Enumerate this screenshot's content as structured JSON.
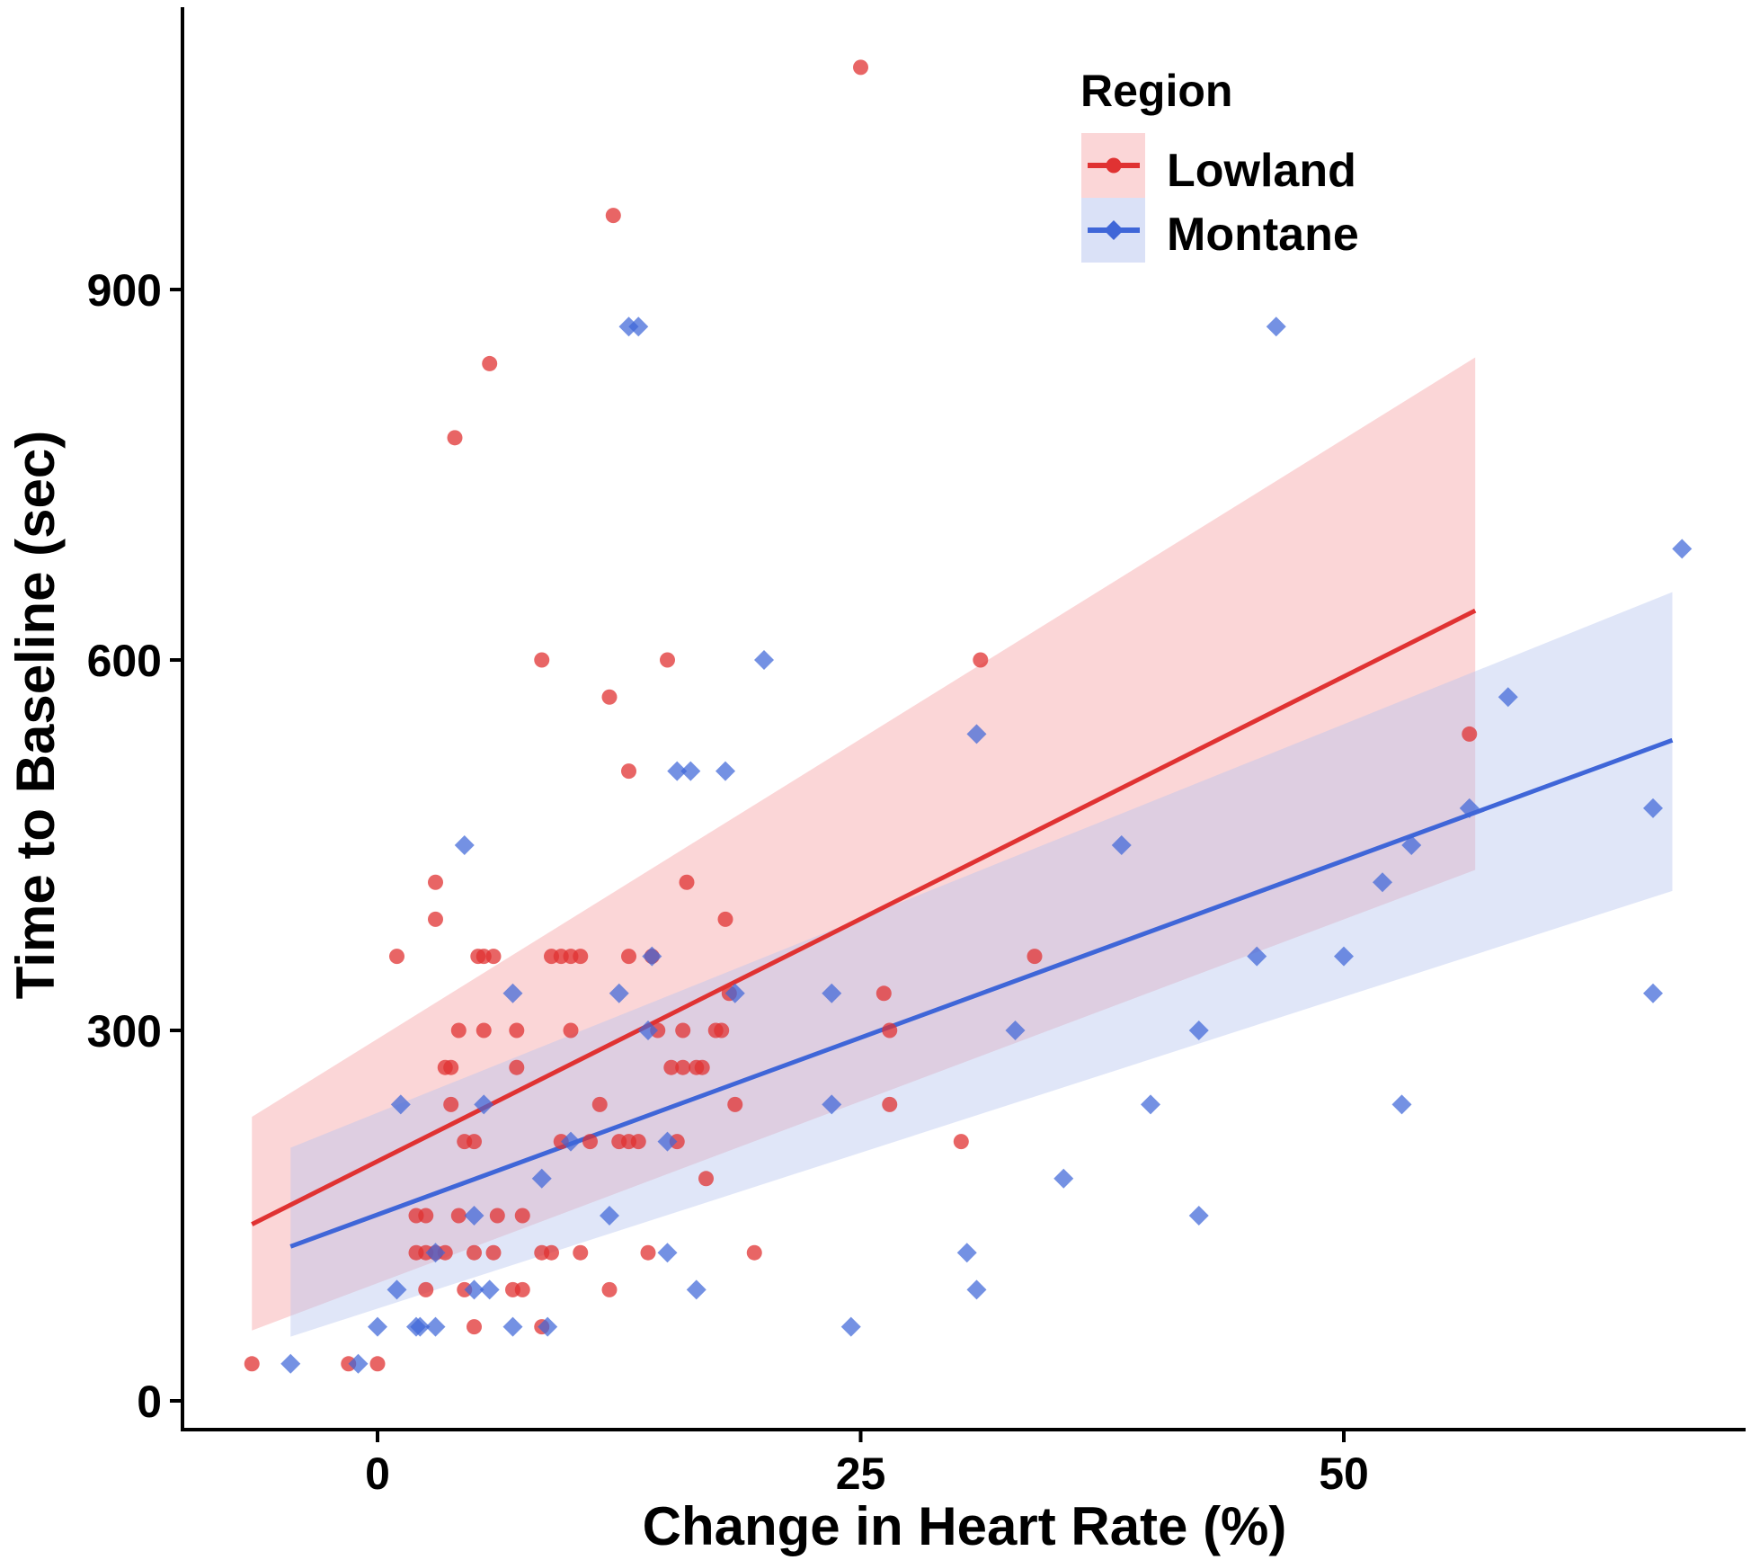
{
  "chart_data": {
    "type": "scatter",
    "title": "",
    "xlabel": "Change in Heart Rate (%)",
    "ylabel": "Time to Baseline (sec)",
    "xlim": [
      -10,
      70
    ],
    "ylim": [
      -20,
      1125
    ],
    "xticks": [
      0,
      25,
      50
    ],
    "yticks": [
      0,
      300,
      600,
      900
    ],
    "grid": false,
    "legend": {
      "title": "Region",
      "position": "top-right"
    },
    "colors": {
      "lowland": "#e03232",
      "lowland_band": "#f8b4b6",
      "montane": "#3f66d8",
      "montane_band": "#b6c4ef"
    },
    "series": [
      {
        "name": "Lowland",
        "marker": "circle",
        "points": [
          [
            -6.5,
            30
          ],
          [
            -1.5,
            30
          ],
          [
            0,
            30
          ],
          [
            1,
            360
          ],
          [
            2,
            150
          ],
          [
            2,
            120
          ],
          [
            2.5,
            150
          ],
          [
            2.5,
            90
          ],
          [
            2.5,
            120
          ],
          [
            3,
            420
          ],
          [
            3,
            390
          ],
          [
            3,
            120
          ],
          [
            3.5,
            270
          ],
          [
            3.5,
            120
          ],
          [
            3.8,
            270
          ],
          [
            3.8,
            240
          ],
          [
            4,
            780
          ],
          [
            4.2,
            300
          ],
          [
            4.2,
            150
          ],
          [
            4.5,
            210
          ],
          [
            4.5,
            90
          ],
          [
            5,
            210
          ],
          [
            5,
            120
          ],
          [
            5,
            60
          ],
          [
            5.2,
            360
          ],
          [
            5.5,
            360
          ],
          [
            5.5,
            300
          ],
          [
            5.8,
            840
          ],
          [
            6,
            360
          ],
          [
            6,
            120
          ],
          [
            6.2,
            150
          ],
          [
            7,
            90
          ],
          [
            7.2,
            300
          ],
          [
            7.2,
            270
          ],
          [
            7.5,
            150
          ],
          [
            7.5,
            90
          ],
          [
            8.5,
            600
          ],
          [
            8.5,
            120
          ],
          [
            8.5,
            60
          ],
          [
            9,
            120
          ],
          [
            9,
            360
          ],
          [
            9.5,
            360
          ],
          [
            9.5,
            210
          ],
          [
            10,
            300
          ],
          [
            10,
            360
          ],
          [
            10.5,
            360
          ],
          [
            10.5,
            120
          ],
          [
            11,
            210
          ],
          [
            11.5,
            240
          ],
          [
            12,
            90
          ],
          [
            12,
            570
          ],
          [
            12.2,
            960
          ],
          [
            12.5,
            210
          ],
          [
            13,
            210
          ],
          [
            13,
            360
          ],
          [
            13,
            510
          ],
          [
            13.5,
            210
          ],
          [
            14,
            120
          ],
          [
            14.2,
            360
          ],
          [
            14.5,
            300
          ],
          [
            15,
            600
          ],
          [
            15.2,
            270
          ],
          [
            15.5,
            210
          ],
          [
            15.8,
            300
          ],
          [
            15.8,
            270
          ],
          [
            16,
            420
          ],
          [
            16.5,
            270
          ],
          [
            16.8,
            270
          ],
          [
            17,
            180
          ],
          [
            17.5,
            300
          ],
          [
            17.8,
            300
          ],
          [
            18,
            390
          ],
          [
            18.2,
            330
          ],
          [
            18.5,
            240
          ],
          [
            19.5,
            120
          ],
          [
            25,
            1080
          ],
          [
            26.2,
            330
          ],
          [
            26.5,
            240
          ],
          [
            26.5,
            300
          ],
          [
            30.2,
            210
          ],
          [
            31.2,
            600
          ],
          [
            34,
            360
          ],
          [
            56.5,
            540
          ]
        ],
        "fit": {
          "x": [
            -6.5,
            56.8
          ],
          "y": [
            143,
            640
          ]
        },
        "ci": {
          "x": [
            -6.5,
            56.8
          ],
          "upper": [
            230,
            845
          ],
          "lower": [
            57,
            430
          ]
        }
      },
      {
        "name": "Montane",
        "marker": "diamond",
        "points": [
          [
            -4.5,
            30
          ],
          [
            -1,
            30
          ],
          [
            0,
            60
          ],
          [
            1,
            90
          ],
          [
            1.2,
            240
          ],
          [
            2,
            60
          ],
          [
            2.2,
            60
          ],
          [
            3,
            60
          ],
          [
            3,
            120
          ],
          [
            4.5,
            450
          ],
          [
            5,
            150
          ],
          [
            5,
            90
          ],
          [
            5.5,
            240
          ],
          [
            5.8,
            90
          ],
          [
            7,
            330
          ],
          [
            7,
            60
          ],
          [
            8.5,
            180
          ],
          [
            8.8,
            60
          ],
          [
            10,
            210
          ],
          [
            12,
            150
          ],
          [
            12.5,
            330
          ],
          [
            13,
            870
          ],
          [
            13.5,
            870
          ],
          [
            14,
            300
          ],
          [
            14.2,
            360
          ],
          [
            15,
            120
          ],
          [
            15,
            210
          ],
          [
            15.5,
            510
          ],
          [
            16.2,
            510
          ],
          [
            16.5,
            90
          ],
          [
            18,
            510
          ],
          [
            18.5,
            330
          ],
          [
            20,
            600
          ],
          [
            23.5,
            240
          ],
          [
            23.5,
            330
          ],
          [
            24.5,
            60
          ],
          [
            30.5,
            120
          ],
          [
            31,
            90
          ],
          [
            31,
            540
          ],
          [
            33,
            300
          ],
          [
            35.5,
            180
          ],
          [
            38.5,
            450
          ],
          [
            40,
            240
          ],
          [
            42.5,
            150
          ],
          [
            42.5,
            300
          ],
          [
            45.5,
            360
          ],
          [
            46.5,
            870
          ],
          [
            50,
            360
          ],
          [
            52,
            420
          ],
          [
            53,
            240
          ],
          [
            53.5,
            450
          ],
          [
            56.5,
            480
          ],
          [
            58.5,
            570
          ],
          [
            66,
            480
          ],
          [
            66,
            330
          ],
          [
            67.5,
            690
          ]
        ],
        "fit": {
          "x": [
            -4.5,
            67
          ],
          "y": [
            125,
            535
          ]
        },
        "ci": {
          "x": [
            -4.5,
            67
          ],
          "upper": [
            205,
            655
          ],
          "lower": [
            52,
            413
          ]
        }
      }
    ]
  }
}
